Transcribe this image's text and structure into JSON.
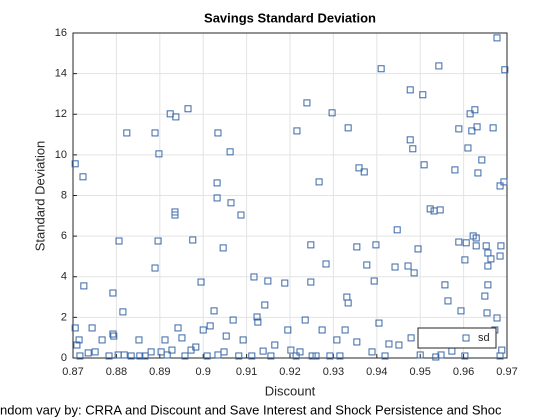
{
  "chart_data": {
    "type": "scatter",
    "title": "Savings Standard Deviation",
    "xlabel": "Discount",
    "ylabel": "Standard Deviation",
    "note": "ndom vary by: CRRA and Discount and Save Interest and Shock Persistence and Shoc",
    "xlim": [
      0.87,
      0.97
    ],
    "xticks": [
      0.87,
      0.88,
      0.89,
      0.9,
      0.91,
      0.92,
      0.93,
      0.94,
      0.95,
      0.96,
      0.97
    ],
    "ylim": [
      0,
      16
    ],
    "yticks": [
      0,
      2,
      4,
      6,
      8,
      10,
      12,
      14,
      16
    ],
    "grid": true,
    "legend": "southeast",
    "x": [
      0.8705,
      0.8723,
      0.8824,
      0.8889,
      0.8898,
      0.8924,
      0.8937,
      0.8965,
      0.8935,
      0.8935,
      0.9034,
      0.9062,
      0.9032,
      0.9032,
      0.9064,
      0.9087,
      0.9216,
      0.9239,
      0.9297,
      0.9334,
      0.941,
      0.9477,
      0.9506,
      0.9543,
      0.9677,
      0.9695,
      0.9267,
      0.9359,
      0.9371,
      0.9477,
      0.9483,
      0.9509,
      0.9589,
      0.9615,
      0.9626,
      0.9619,
      0.9631,
      0.9668,
      0.961,
      0.9642,
      0.9633,
      0.9693,
      0.9684,
      0.958,
      0.9523,
      0.9532,
      0.9546,
      0.8806,
      0.8976,
      0.8896,
      0.8889,
      0.8725,
      0.8792,
      0.8815,
      0.8995,
      0.9046,
      0.9025,
      0.9117,
      0.9149,
      0.9142,
      0.9248,
      0.9188,
      0.9248,
      0.9283,
      0.9354,
      0.9398,
      0.9377,
      0.9394,
      0.9331,
      0.9334,
      0.9447,
      0.9442,
      0.9472,
      0.9486,
      0.9495,
      0.9589,
      0.9606,
      0.9629,
      0.9622,
      0.9629,
      0.9652,
      0.9656,
      0.9663,
      0.9603,
      0.9686,
      0.9557,
      0.9564,
      0.9594,
      0.9656,
      0.9656,
      0.9649,
      0.9684,
      0.8705,
      0.8714,
      0.8709,
      0.8744,
      0.8751,
      0.8767,
      0.8783,
      0.8794,
      0.8792,
      0.8804,
      0.8818,
      0.8852,
      0.8854,
      0.888,
      0.8903,
      0.8912,
      0.8928,
      0.8942,
      0.8951,
      0.8972,
      0.8983,
      0.9,
      0.9016,
      0.9048,
      0.9053,
      0.9069,
      0.9092,
      0.9112,
      0.9124,
      0.9126,
      0.9138,
      0.9165,
      0.9195,
      0.9202,
      0.9214,
      0.9235,
      0.9251,
      0.926,
      0.9274,
      0.9292,
      0.9308,
      0.9327,
      0.9354,
      0.9389,
      0.9405,
      0.9428,
      0.9451,
      0.9479,
      0.9513,
      0.9536,
      0.9573,
      0.9612,
      0.9654,
      0.9672,
      0.9688,
      0.8716,
      0.8735,
      0.8834,
      0.8866,
      0.8917,
      0.8958,
      0.9009,
      0.9034,
      0.9082,
      0.9156,
      0.9223,
      0.9315,
      0.9419,
      0.95,
      0.9548,
      0.9603,
      0.9684,
      0.9677
    ],
    "series": [
      {
        "name": "sd",
        "color": "#3a68a8",
        "values": [
          9.56,
          8.92,
          11.08,
          11.08,
          10.05,
          12.02,
          11.87,
          12.27,
          7.19,
          7.04,
          11.08,
          10.15,
          8.62,
          7.88,
          7.64,
          7.04,
          11.18,
          12.56,
          12.07,
          11.33,
          14.24,
          13.2,
          12.96,
          14.38,
          15.76,
          14.19,
          8.67,
          9.36,
          9.16,
          10.74,
          10.3,
          9.51,
          11.28,
          12.02,
          12.22,
          11.18,
          11.38,
          11.33,
          10.34,
          9.75,
          9.11,
          8.67,
          8.47,
          9.26,
          7.34,
          7.24,
          7.29,
          5.76,
          5.81,
          5.76,
          4.43,
          3.55,
          3.2,
          2.27,
          3.74,
          5.42,
          2.32,
          3.99,
          3.79,
          2.61,
          5.57,
          3.69,
          3.74,
          4.63,
          5.47,
          5.57,
          4.58,
          3.79,
          3.0,
          2.71,
          6.31,
          4.48,
          4.53,
          4.19,
          5.37,
          5.71,
          5.67,
          5.52,
          6.01,
          5.91,
          5.52,
          5.17,
          4.88,
          4.83,
          5.52,
          3.6,
          2.81,
          2.32,
          4.53,
          3.6,
          3.05,
          5.02,
          1.48,
          0.89,
          0.64,
          1.48,
          0.3,
          0.89,
          0.1,
          1.08,
          1.18,
          0.15,
          0.15,
          0.89,
          0.1,
          0.3,
          0.3,
          0.89,
          0.39,
          1.48,
          0.99,
          0.39,
          0.54,
          1.38,
          1.58,
          0.3,
          1.08,
          1.87,
          0.89,
          0.1,
          2.02,
          1.77,
          0.34,
          0.64,
          1.38,
          0.39,
          0.1,
          1.87,
          0.1,
          0.1,
          1.38,
          0.1,
          0.89,
          1.38,
          0.79,
          0.3,
          1.72,
          0.69,
          0.64,
          0.99,
          0.89,
          0.05,
          0.34,
          0.74,
          2.22,
          1.38,
          0.39,
          0.1,
          0.25,
          0.1,
          0.1,
          0.15,
          0.1,
          0.1,
          0.15,
          0.1,
          0.1,
          0.3,
          0.1,
          0.1,
          0.15,
          0.15,
          0.1,
          0.1,
          1.97
        ]
      }
    ]
  }
}
